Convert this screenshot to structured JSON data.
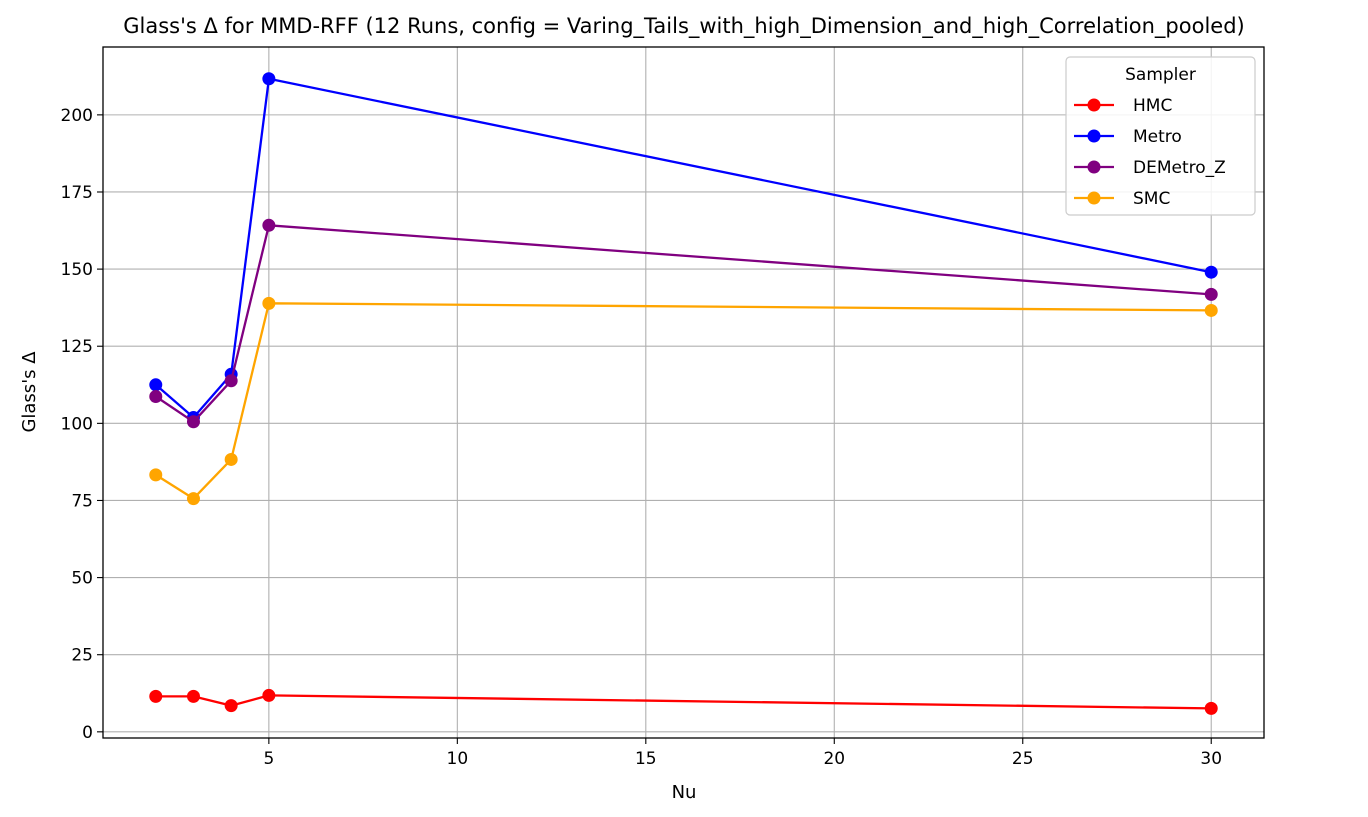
{
  "chart_data": {
    "type": "line",
    "title": "Glass's Δ for MMD-RFF (12 Runs, config = Varing_Tails_with_high_Dimension_and_high_Correlation_pooled)",
    "xlabel": "Nu",
    "ylabel": "Glass's Δ",
    "x": [
      2,
      3,
      4,
      5,
      30
    ],
    "xlim": [
      0.6,
      31.4
    ],
    "ylim": [
      -2,
      222
    ],
    "xticks": [
      5,
      10,
      15,
      20,
      25,
      30
    ],
    "yticks": [
      0,
      25,
      50,
      75,
      100,
      125,
      150,
      175,
      200
    ],
    "xtick_labels": [
      "5",
      "10",
      "15",
      "20",
      "25",
      "30"
    ],
    "ytick_labels": [
      "0",
      "25",
      "50",
      "75",
      "100",
      "125",
      "150",
      "175",
      "200"
    ],
    "grid": true,
    "legend": {
      "title": "Sampler",
      "placement": "top-right"
    },
    "series": [
      {
        "name": "HMC",
        "color": "#ff0000",
        "values": [
          11.5,
          11.5,
          8.5,
          11.8,
          7.6
        ]
      },
      {
        "name": "Metro",
        "color": "#0000ff",
        "values": [
          112.5,
          101.9,
          115.9,
          211.7,
          149.0
        ]
      },
      {
        "name": "DEMetro_Z",
        "color": "#800080",
        "values": [
          108.7,
          100.5,
          113.8,
          164.2,
          141.8
        ]
      },
      {
        "name": "SMC",
        "color": "#ffa500",
        "values": [
          83.3,
          75.6,
          88.3,
          138.9,
          136.6
        ]
      }
    ]
  }
}
